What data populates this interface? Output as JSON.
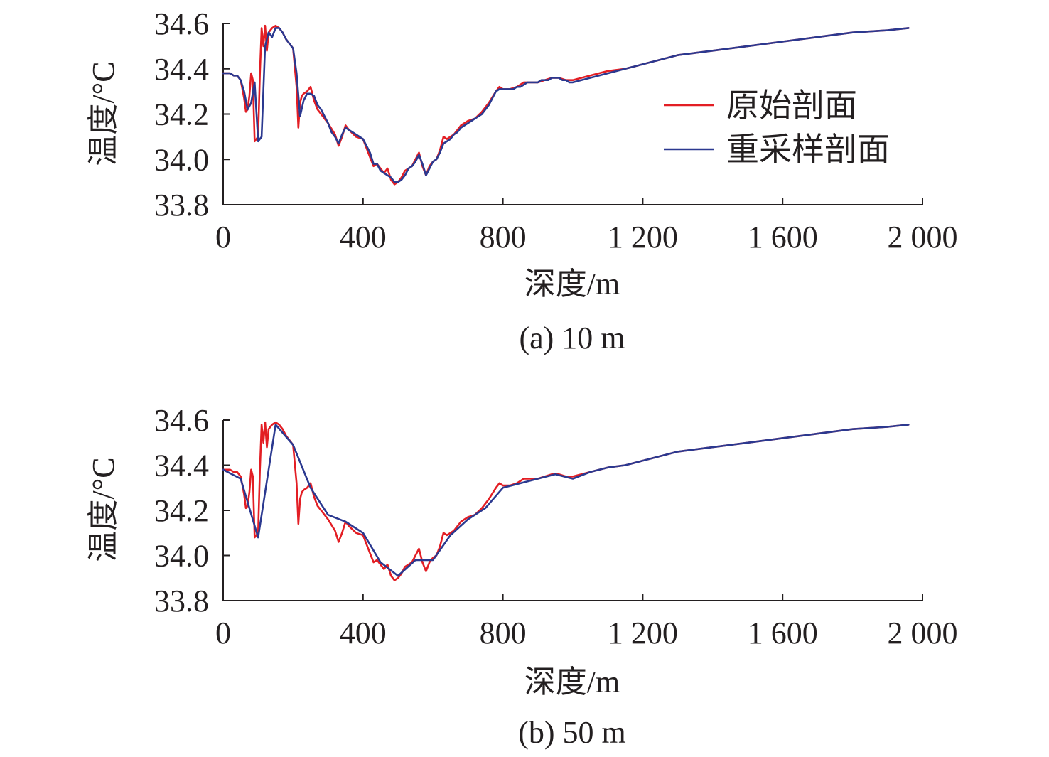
{
  "chart_data": [
    {
      "type": "line",
      "caption": "(a) 10 m",
      "xlabel": "深度/m",
      "ylabel": "温度/°C",
      "xlim": [
        0,
        2000
      ],
      "ylim": [
        33.8,
        34.6
      ],
      "x_ticks": [
        0,
        400,
        800,
        1200,
        1600,
        2000
      ],
      "x_tick_labels": [
        "0",
        "400",
        "800",
        "1 200",
        "1 600",
        "2 000"
      ],
      "y_ticks": [
        33.8,
        34.0,
        34.2,
        34.4,
        34.6
      ],
      "y_tick_labels": [
        "33.8",
        "34.0",
        "34.2",
        "34.4",
        "34.6"
      ],
      "legend": {
        "placement": "top-right",
        "entries": [
          "原始剖面",
          "重采样剖面"
        ]
      },
      "series": [
        {
          "name": "原始剖面",
          "color": "#e31e24",
          "x": [
            0,
            10,
            20,
            30,
            40,
            50,
            55,
            60,
            65,
            70,
            75,
            80,
            85,
            90,
            95,
            100,
            105,
            110,
            115,
            120,
            125,
            130,
            135,
            140,
            150,
            160,
            170,
            180,
            190,
            200,
            210,
            215,
            220,
            225,
            230,
            240,
            250,
            260,
            270,
            280,
            300,
            320,
            330,
            340,
            350,
            360,
            380,
            400,
            410,
            420,
            430,
            440,
            450,
            460,
            470,
            480,
            490,
            500,
            510,
            520,
            530,
            540,
            550,
            560,
            570,
            580,
            590,
            600,
            610,
            620,
            630,
            640,
            650,
            660,
            680,
            700,
            720,
            740,
            760,
            780,
            790,
            800,
            810,
            820,
            840,
            860,
            880,
            900,
            920,
            940,
            960,
            980,
            1000,
            1050,
            1100,
            1150,
            1200,
            1300,
            1400,
            1500,
            1600,
            1700,
            1800,
            1900,
            1960
          ],
          "values": [
            34.38,
            34.38,
            34.38,
            34.37,
            34.37,
            34.35,
            34.31,
            34.27,
            34.21,
            34.22,
            34.28,
            34.38,
            34.35,
            34.08,
            34.09,
            34.1,
            34.38,
            34.58,
            34.5,
            34.59,
            34.48,
            34.56,
            34.57,
            34.58,
            34.59,
            34.58,
            34.56,
            34.53,
            34.51,
            34.49,
            34.32,
            34.14,
            34.25,
            34.28,
            34.29,
            34.3,
            34.32,
            34.26,
            34.22,
            34.2,
            34.16,
            34.11,
            34.06,
            34.1,
            34.15,
            34.13,
            34.1,
            34.09,
            34.05,
            34.01,
            33.97,
            33.98,
            33.96,
            33.94,
            33.96,
            33.91,
            33.89,
            33.9,
            33.92,
            33.95,
            33.96,
            33.97,
            34.0,
            34.03,
            33.97,
            33.93,
            33.97,
            33.99,
            34.0,
            34.04,
            34.1,
            34.09,
            34.1,
            34.11,
            34.15,
            34.17,
            34.18,
            34.21,
            34.25,
            34.3,
            34.32,
            34.31,
            34.31,
            34.31,
            34.32,
            34.34,
            34.34,
            34.34,
            34.35,
            34.36,
            34.36,
            34.35,
            34.35,
            34.37,
            34.39,
            34.4,
            34.42,
            34.46,
            34.48,
            34.5,
            34.52,
            34.54,
            34.56,
            34.57,
            34.58
          ]
        },
        {
          "name": "重采样剖面",
          "color": "#2b3990",
          "x": [
            0,
            10,
            20,
            30,
            40,
            50,
            60,
            70,
            80,
            90,
            100,
            110,
            120,
            130,
            140,
            150,
            160,
            170,
            180,
            190,
            200,
            210,
            220,
            230,
            240,
            250,
            260,
            270,
            280,
            290,
            300,
            310,
            320,
            330,
            340,
            350,
            360,
            370,
            380,
            390,
            400,
            410,
            420,
            430,
            440,
            450,
            460,
            470,
            480,
            490,
            500,
            510,
            520,
            530,
            540,
            550,
            560,
            570,
            580,
            590,
            600,
            610,
            620,
            630,
            640,
            650,
            660,
            670,
            680,
            690,
            700,
            710,
            720,
            730,
            740,
            750,
            760,
            770,
            780,
            790,
            800,
            810,
            820,
            830,
            840,
            850,
            860,
            870,
            880,
            890,
            900,
            910,
            920,
            930,
            940,
            950,
            960,
            970,
            980,
            990,
            1000,
            1050,
            1100,
            1150,
            1200,
            1300,
            1400,
            1500,
            1600,
            1700,
            1800,
            1900,
            1960
          ],
          "values": [
            34.38,
            34.38,
            34.38,
            34.37,
            34.37,
            34.35,
            34.3,
            34.22,
            34.25,
            34.34,
            34.08,
            34.1,
            34.5,
            34.56,
            34.54,
            34.58,
            34.58,
            34.56,
            34.53,
            34.51,
            34.49,
            34.38,
            34.19,
            34.26,
            34.29,
            34.29,
            34.28,
            34.24,
            34.22,
            34.19,
            34.16,
            34.12,
            34.1,
            34.07,
            34.11,
            34.14,
            34.13,
            34.12,
            34.11,
            34.1,
            34.09,
            34.06,
            34.03,
            33.98,
            33.98,
            33.95,
            33.94,
            33.93,
            33.92,
            33.9,
            33.9,
            33.91,
            33.93,
            33.96,
            33.97,
            33.99,
            34.02,
            33.98,
            33.93,
            33.96,
            33.99,
            34.0,
            34.03,
            34.07,
            34.08,
            34.09,
            34.11,
            34.12,
            34.14,
            34.15,
            34.16,
            34.17,
            34.18,
            34.19,
            34.2,
            34.22,
            34.24,
            34.27,
            34.3,
            34.31,
            34.31,
            34.31,
            34.31,
            34.31,
            34.32,
            34.32,
            34.33,
            34.34,
            34.34,
            34.34,
            34.34,
            34.35,
            34.35,
            34.35,
            34.36,
            34.36,
            34.36,
            34.35,
            34.35,
            34.34,
            34.34,
            34.36,
            34.38,
            34.4,
            34.42,
            34.46,
            34.48,
            34.5,
            34.52,
            34.54,
            34.56,
            34.57,
            34.58
          ]
        }
      ]
    },
    {
      "type": "line",
      "caption": "(b) 50 m",
      "xlabel": "深度/m",
      "ylabel": "温度/°C",
      "xlim": [
        0,
        2000
      ],
      "ylim": [
        33.8,
        34.6
      ],
      "x_ticks": [
        0,
        400,
        800,
        1200,
        1600,
        2000
      ],
      "x_tick_labels": [
        "0",
        "400",
        "800",
        "1 200",
        "1 600",
        "2 000"
      ],
      "y_ticks": [
        33.8,
        34.0,
        34.2,
        34.4,
        34.6
      ],
      "y_tick_labels": [
        "33.8",
        "34.0",
        "34.2",
        "34.4",
        "34.6"
      ],
      "series": [
        {
          "name": "原始剖面",
          "color": "#e31e24",
          "x": [
            0,
            10,
            20,
            30,
            40,
            50,
            55,
            60,
            65,
            70,
            75,
            80,
            85,
            90,
            95,
            100,
            105,
            110,
            115,
            120,
            125,
            130,
            135,
            140,
            150,
            160,
            170,
            180,
            190,
            200,
            210,
            215,
            220,
            225,
            230,
            240,
            250,
            260,
            270,
            280,
            300,
            320,
            330,
            340,
            350,
            360,
            380,
            400,
            410,
            420,
            430,
            440,
            450,
            460,
            470,
            480,
            490,
            500,
            510,
            520,
            530,
            540,
            550,
            560,
            570,
            580,
            590,
            600,
            610,
            620,
            630,
            640,
            650,
            660,
            680,
            700,
            720,
            740,
            760,
            780,
            790,
            800,
            810,
            820,
            840,
            860,
            880,
            900,
            920,
            940,
            960,
            980,
            1000,
            1050,
            1100,
            1150,
            1200,
            1300,
            1400,
            1500,
            1600,
            1700,
            1800,
            1900,
            1960
          ],
          "values": [
            34.38,
            34.38,
            34.38,
            34.37,
            34.37,
            34.35,
            34.31,
            34.27,
            34.21,
            34.22,
            34.28,
            34.38,
            34.35,
            34.08,
            34.09,
            34.1,
            34.38,
            34.58,
            34.5,
            34.59,
            34.48,
            34.56,
            34.57,
            34.58,
            34.59,
            34.58,
            34.56,
            34.53,
            34.51,
            34.49,
            34.32,
            34.14,
            34.25,
            34.28,
            34.29,
            34.3,
            34.32,
            34.26,
            34.22,
            34.2,
            34.16,
            34.11,
            34.06,
            34.1,
            34.15,
            34.13,
            34.1,
            34.09,
            34.05,
            34.01,
            33.97,
            33.98,
            33.96,
            33.94,
            33.96,
            33.91,
            33.89,
            33.9,
            33.92,
            33.95,
            33.96,
            33.97,
            34.0,
            34.03,
            33.97,
            33.93,
            33.97,
            33.99,
            34.0,
            34.04,
            34.1,
            34.09,
            34.1,
            34.11,
            34.15,
            34.17,
            34.18,
            34.21,
            34.25,
            34.3,
            34.32,
            34.31,
            34.31,
            34.31,
            34.32,
            34.34,
            34.34,
            34.34,
            34.35,
            34.36,
            34.36,
            34.35,
            34.35,
            34.37,
            34.39,
            34.4,
            34.42,
            34.46,
            34.48,
            34.5,
            34.52,
            34.54,
            34.56,
            34.57,
            34.58
          ]
        },
        {
          "name": "重采样剖面",
          "color": "#2b3990",
          "x": [
            0,
            50,
            100,
            150,
            200,
            250,
            300,
            350,
            400,
            450,
            500,
            550,
            600,
            650,
            700,
            750,
            800,
            850,
            900,
            950,
            1000,
            1050,
            1100,
            1150,
            1200,
            1300,
            1400,
            1500,
            1600,
            1700,
            1800,
            1900,
            1960
          ],
          "values": [
            34.38,
            34.34,
            34.08,
            34.58,
            34.49,
            34.3,
            34.18,
            34.15,
            34.1,
            33.97,
            33.91,
            33.98,
            33.98,
            34.09,
            34.16,
            34.21,
            34.3,
            34.32,
            34.34,
            34.36,
            34.34,
            34.37,
            34.39,
            34.4,
            34.42,
            34.46,
            34.48,
            34.5,
            34.52,
            34.54,
            34.56,
            34.57,
            34.58
          ]
        }
      ]
    }
  ]
}
